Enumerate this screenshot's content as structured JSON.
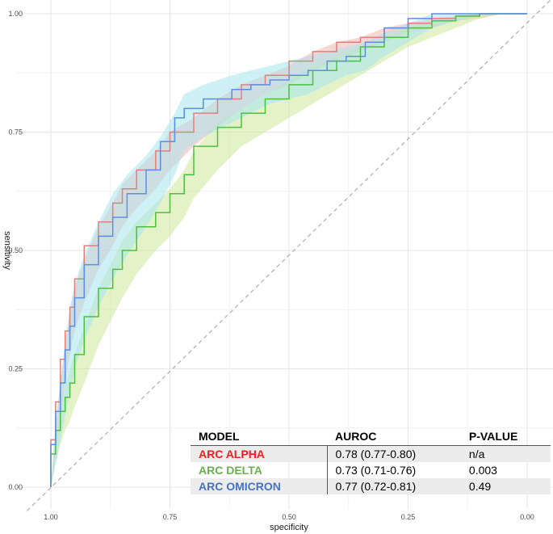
{
  "chart_data": {
    "type": "line",
    "xlabel": "specificity",
    "ylabel": "sensitivity",
    "x_reversed": true,
    "xlim": [
      1.0,
      0.0
    ],
    "ylim": [
      0.0,
      1.0
    ],
    "x_ticks": [
      "1.00",
      "0.75",
      "0.50",
      "0.25",
      "0.00"
    ],
    "y_ticks": [
      "0.00",
      "0.25",
      "0.50",
      "0.75",
      "1.00"
    ],
    "grid": true,
    "reference_line": "diagonal-dashed",
    "series": [
      {
        "name": "ARC ALPHA",
        "color": "#e0807a",
        "band_color": "#f8b4ae",
        "x": [
          1.0,
          0.99,
          0.98,
          0.97,
          0.96,
          0.95,
          0.93,
          0.9,
          0.87,
          0.85,
          0.82,
          0.78,
          0.75,
          0.7,
          0.65,
          0.6,
          0.55,
          0.5,
          0.45,
          0.4,
          0.35,
          0.3,
          0.25,
          0.2,
          0.15,
          0.1,
          0.05,
          0.0
        ],
        "y": [
          0.0,
          0.1,
          0.18,
          0.27,
          0.33,
          0.38,
          0.44,
          0.51,
          0.56,
          0.6,
          0.63,
          0.67,
          0.71,
          0.75,
          0.79,
          0.82,
          0.85,
          0.87,
          0.9,
          0.92,
          0.94,
          0.95,
          0.97,
          0.98,
          0.99,
          0.995,
          1.0,
          1.0
        ],
        "lower": [
          0.0,
          0.07,
          0.14,
          0.22,
          0.28,
          0.33,
          0.39,
          0.46,
          0.51,
          0.55,
          0.59,
          0.63,
          0.67,
          0.72,
          0.76,
          0.8,
          0.83,
          0.85,
          0.88,
          0.9,
          0.92,
          0.94,
          0.96,
          0.97,
          0.985,
          0.99,
          1.0,
          1.0
        ],
        "upper": [
          0.0,
          0.13,
          0.22,
          0.31,
          0.37,
          0.42,
          0.48,
          0.55,
          0.6,
          0.64,
          0.67,
          0.71,
          0.75,
          0.78,
          0.82,
          0.85,
          0.87,
          0.89,
          0.92,
          0.94,
          0.95,
          0.97,
          0.98,
          0.99,
          0.995,
          1.0,
          1.0,
          1.0
        ]
      },
      {
        "name": "ARC DELTA",
        "color": "#4fbf3f",
        "band_color": "#cde89a",
        "x": [
          1.0,
          0.99,
          0.98,
          0.97,
          0.96,
          0.95,
          0.93,
          0.9,
          0.87,
          0.85,
          0.82,
          0.78,
          0.75,
          0.72,
          0.7,
          0.65,
          0.6,
          0.55,
          0.5,
          0.45,
          0.4,
          0.35,
          0.3,
          0.25,
          0.2,
          0.15,
          0.1,
          0.05,
          0.0
        ],
        "y": [
          0.0,
          0.07,
          0.12,
          0.16,
          0.19,
          0.22,
          0.28,
          0.36,
          0.42,
          0.46,
          0.5,
          0.55,
          0.58,
          0.62,
          0.66,
          0.72,
          0.76,
          0.79,
          0.82,
          0.85,
          0.88,
          0.9,
          0.93,
          0.95,
          0.97,
          0.985,
          0.995,
          1.0,
          1.0
        ],
        "lower": [
          0.0,
          0.05,
          0.09,
          0.12,
          0.14,
          0.17,
          0.22,
          0.3,
          0.36,
          0.4,
          0.45,
          0.5,
          0.53,
          0.57,
          0.61,
          0.67,
          0.72,
          0.75,
          0.78,
          0.81,
          0.84,
          0.87,
          0.9,
          0.93,
          0.95,
          0.97,
          0.99,
          1.0,
          1.0
        ],
        "upper": [
          0.0,
          0.1,
          0.16,
          0.21,
          0.25,
          0.28,
          0.34,
          0.42,
          0.48,
          0.52,
          0.56,
          0.6,
          0.63,
          0.67,
          0.71,
          0.77,
          0.8,
          0.83,
          0.86,
          0.89,
          0.91,
          0.93,
          0.95,
          0.97,
          0.985,
          0.995,
          1.0,
          1.0,
          1.0
        ]
      },
      {
        "name": "ARC OMICRON",
        "color": "#5b8fe0",
        "band_color": "#a5e6ee",
        "x": [
          1.0,
          0.99,
          0.98,
          0.97,
          0.96,
          0.95,
          0.93,
          0.9,
          0.87,
          0.84,
          0.8,
          0.77,
          0.74,
          0.72,
          0.68,
          0.62,
          0.58,
          0.54,
          0.5,
          0.46,
          0.42,
          0.38,
          0.34,
          0.3,
          0.25,
          0.2,
          0.15,
          0.1,
          0.05,
          0.0
        ],
        "y": [
          0.0,
          0.09,
          0.16,
          0.22,
          0.29,
          0.34,
          0.4,
          0.47,
          0.53,
          0.57,
          0.62,
          0.67,
          0.73,
          0.78,
          0.8,
          0.82,
          0.84,
          0.85,
          0.86,
          0.87,
          0.88,
          0.9,
          0.91,
          0.94,
          0.97,
          0.99,
          1.0,
          1.0,
          1.0,
          1.0
        ],
        "lower": [
          0.0,
          0.05,
          0.1,
          0.15,
          0.2,
          0.25,
          0.31,
          0.38,
          0.44,
          0.49,
          0.55,
          0.6,
          0.66,
          0.71,
          0.74,
          0.77,
          0.79,
          0.81,
          0.82,
          0.83,
          0.85,
          0.87,
          0.88,
          0.91,
          0.94,
          0.97,
          0.985,
          0.995,
          1.0,
          1.0
        ],
        "upper": [
          0.0,
          0.14,
          0.22,
          0.3,
          0.38,
          0.43,
          0.49,
          0.56,
          0.62,
          0.66,
          0.7,
          0.74,
          0.79,
          0.83,
          0.85,
          0.87,
          0.88,
          0.89,
          0.9,
          0.91,
          0.92,
          0.93,
          0.94,
          0.96,
          0.98,
          1.0,
          1.0,
          1.0,
          1.0,
          1.0
        ]
      }
    ]
  },
  "table": {
    "headers": [
      "MODEL",
      "AUROC",
      "P-VALUE"
    ],
    "rows": [
      {
        "model": "ARC ALPHA",
        "color": "#ff1a1a",
        "auroc": "0.78 (0.77-0.80)",
        "pvalue": "n/a"
      },
      {
        "model": "ARC DELTA",
        "color": "#6ab04c",
        "auroc": "0.73 (0.71-0.76)",
        "pvalue": "0.003"
      },
      {
        "model": "ARC OMICRON",
        "color": "#4472c4",
        "auroc": "0.77 (0.72-0.81)",
        "pvalue": "0.49"
      }
    ]
  }
}
